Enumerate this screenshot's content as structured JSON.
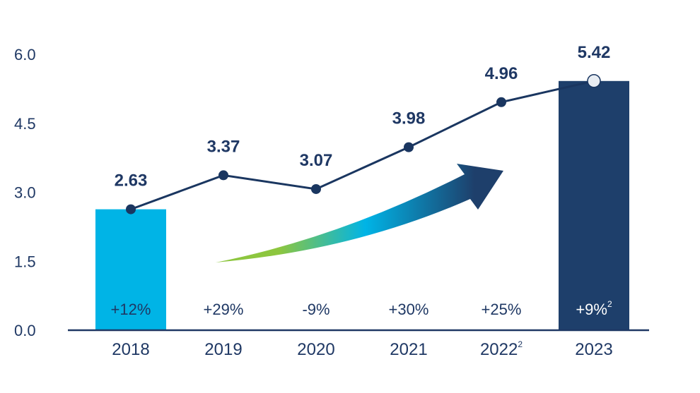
{
  "chart_data": {
    "type": "bar+line",
    "title": "",
    "xlabel": "",
    "ylabel": "",
    "ylim": [
      0,
      6.0
    ],
    "yticks": [
      "0.0",
      "1.5",
      "3.0",
      "4.5",
      "6.0"
    ],
    "ytick_values": [
      0,
      1.5,
      3.0,
      4.5,
      6.0
    ],
    "categories": [
      "2018",
      "2019",
      "2020",
      "2021",
      "2022",
      "2023"
    ],
    "category_superscripts": [
      "",
      "",
      "",
      "",
      "2",
      ""
    ],
    "line_values": [
      2.63,
      3.37,
      3.07,
      3.98,
      4.96,
      5.42
    ],
    "line_labels": [
      "2.63",
      "3.37",
      "3.07",
      "3.98",
      "4.96",
      "5.42"
    ],
    "bars": [
      {
        "category": "2018",
        "value": 2.63,
        "color": "#00b4e6"
      },
      {
        "category": "2023",
        "value": 5.42,
        "color": "#1e3f6b"
      }
    ],
    "growth_labels": [
      "+12%",
      "+29%",
      "-9%",
      "+30%",
      "+25%",
      "+9%"
    ],
    "growth_superscripts": [
      "",
      "",
      "",
      "",
      "",
      "2"
    ],
    "colors": {
      "line": "#1a3660",
      "axis": "#1f3864",
      "arrow_start": "#8dc63f",
      "arrow_mid": "#00b4e6",
      "arrow_end": "#1e3f6b"
    },
    "grid": false,
    "legend": "none"
  }
}
